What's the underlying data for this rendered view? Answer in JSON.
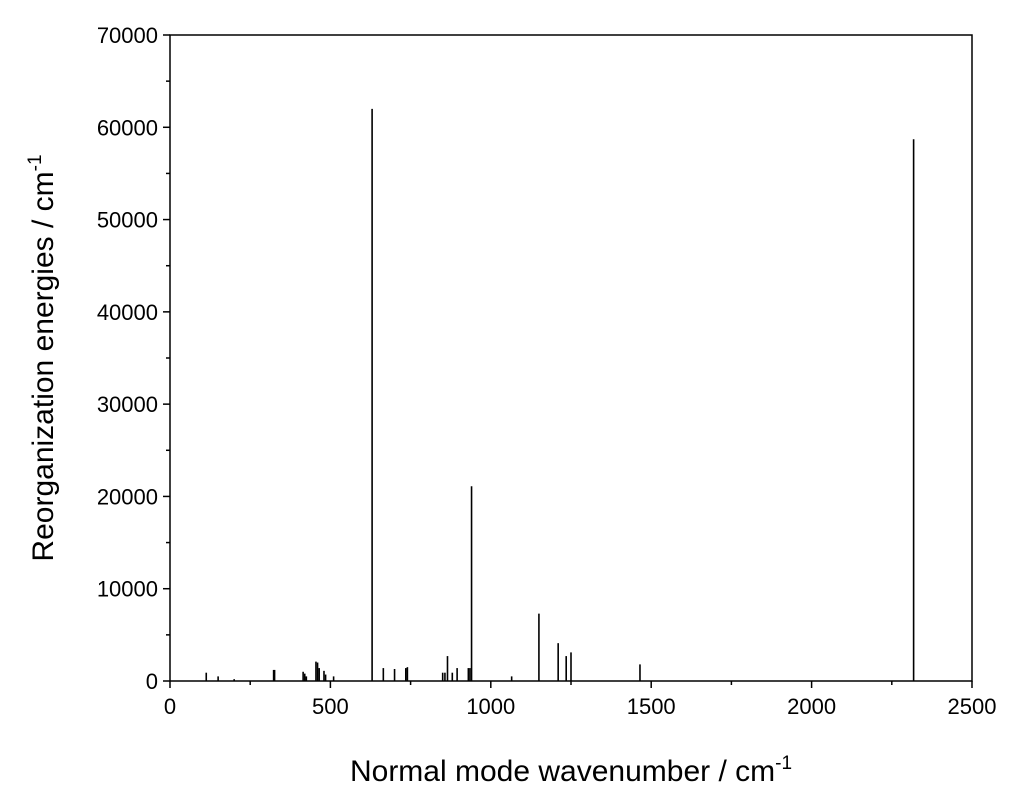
{
  "chart_data": {
    "type": "bar",
    "xlabel": "Normal mode wavenumber / cm",
    "xlabel_sup": "-1",
    "ylabel": "Reorganization energies / cm",
    "ylabel_sup": "-1",
    "xlim": [
      0,
      2500
    ],
    "ylim": [
      0,
      70000
    ],
    "xticks": [
      "0",
      "500",
      "1000",
      "1500",
      "2000",
      "2500"
    ],
    "yticks": [
      "0",
      "10000",
      "20000",
      "30000",
      "40000",
      "50000",
      "60000",
      "70000"
    ],
    "grid": false,
    "x": [
      113,
      150,
      200,
      323,
      326,
      415,
      420,
      425,
      455,
      460,
      465,
      480,
      485,
      510,
      630,
      665,
      700,
      735,
      740,
      850,
      857,
      865,
      880,
      895,
      930,
      935,
      940,
      1065,
      1150,
      1210,
      1235,
      1250,
      1465,
      2318
    ],
    "values": [
      900,
      500,
      200,
      1200,
      1200,
      1000,
      800,
      500,
      2100,
      2000,
      1400,
      1100,
      700,
      500,
      62000,
      1400,
      1300,
      1400,
      1500,
      900,
      900,
      2700,
      900,
      1400,
      1400,
      1400,
      21100,
      500,
      7300,
      4100,
      2700,
      3100,
      1800,
      58700
    ],
    "colors": {
      "bars": "#000000",
      "axes": "#000000"
    }
  }
}
